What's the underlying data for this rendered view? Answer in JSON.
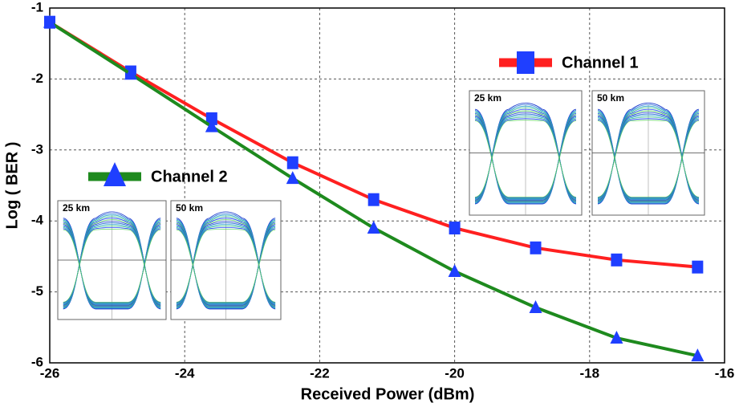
{
  "chart_data": {
    "type": "line",
    "x_label": "Received Power (dBm)",
    "y_label": "Log ( BER )",
    "xlim": [
      -26,
      -16
    ],
    "ylim": [
      -6,
      -1
    ],
    "xticks": [
      -26,
      -24,
      -22,
      -20,
      -18,
      -16
    ],
    "yticks": [
      -6,
      -5,
      -4,
      -3,
      -2,
      -1
    ],
    "grid": true,
    "series": [
      {
        "name": "Channel 1",
        "color": "#ff2020",
        "marker": "square",
        "marker_color": "#1f3fff",
        "x": [
          -26,
          -24.8,
          -23.6,
          -22.4,
          -21.2,
          -20,
          -18.8,
          -17.6,
          -16.4
        ],
        "values": [
          -1.2,
          -1.9,
          -2.56,
          -3.18,
          -3.7,
          -4.1,
          -4.38,
          -4.55,
          -4.65
        ]
      },
      {
        "name": "Channel 2",
        "color": "#1e8a1e",
        "marker": "triangle",
        "marker_color": "#1f3fff",
        "x": [
          -26,
          -24.8,
          -23.6,
          -22.4,
          -21.2,
          -20,
          -18.8,
          -17.6,
          -16.4
        ],
        "values": [
          -1.2,
          -1.93,
          -2.67,
          -3.4,
          -4.1,
          -4.71,
          -5.22,
          -5.65,
          -5.9
        ]
      }
    ],
    "insets": [
      {
        "label": "25 km"
      },
      {
        "label": "50 km"
      },
      {
        "label": "25 km"
      },
      {
        "label": "50 km"
      }
    ]
  }
}
